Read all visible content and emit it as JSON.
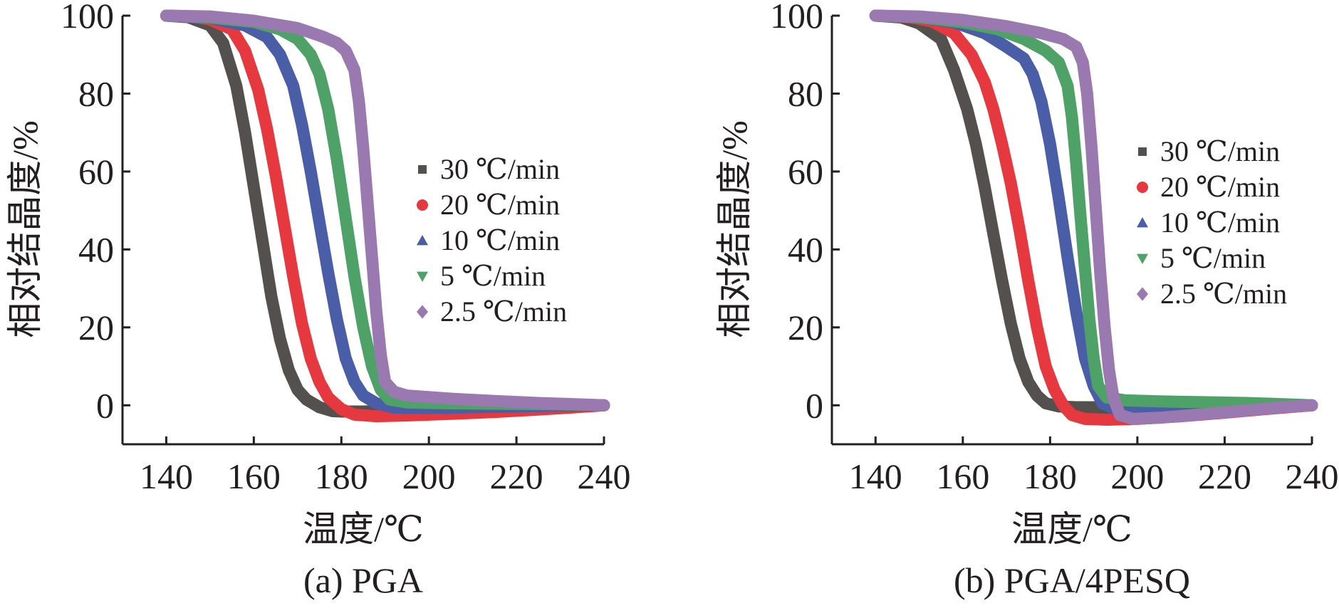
{
  "chart_data": [
    {
      "type": "line",
      "caption": "(a) PGA",
      "xlabel": "温度/℃",
      "ylabel": "相对结晶度/%",
      "xlim": [
        130,
        240
      ],
      "ylim": [
        -10,
        100
      ],
      "xticks": [
        140,
        160,
        180,
        200,
        220,
        240
      ],
      "yticks": [
        0,
        20,
        40,
        60,
        80,
        100
      ],
      "legend_position": "right-center",
      "series": [
        {
          "name": "30 ℃/min",
          "color": "#54504d",
          "marker": "square",
          "points": [
            [
              140,
              100
            ],
            [
              145,
              99.6
            ],
            [
              150,
              97.5
            ],
            [
              153,
              93
            ],
            [
              156,
              82
            ],
            [
              158,
              70
            ],
            [
              160,
              56
            ],
            [
              162,
              42
            ],
            [
              164,
              28
            ],
            [
              166,
              17
            ],
            [
              168,
              9
            ],
            [
              170,
              4
            ],
            [
              172,
              1.5
            ],
            [
              175,
              -0.5
            ],
            [
              178,
              -1.5
            ],
            [
              180,
              -1.6
            ],
            [
              185,
              -1.6
            ],
            [
              190,
              -1.5
            ],
            [
              200,
              -1.3
            ],
            [
              210,
              -1.1
            ],
            [
              220,
              -0.7
            ],
            [
              230,
              -0.3
            ],
            [
              240,
              0
            ]
          ]
        },
        {
          "name": "20 ℃/min",
          "color": "#e5393f",
          "marker": "circle",
          "points": [
            [
              140,
              100
            ],
            [
              146,
              99.8
            ],
            [
              150,
              99
            ],
            [
              155,
              96.5
            ],
            [
              158,
              91
            ],
            [
              161,
              81
            ],
            [
              163,
              71
            ],
            [
              165,
              59
            ],
            [
              167,
              46
            ],
            [
              169,
              33
            ],
            [
              171,
              21
            ],
            [
              173,
              12
            ],
            [
              175,
              6
            ],
            [
              177,
              2
            ],
            [
              180,
              -1
            ],
            [
              183,
              -2.4
            ],
            [
              188,
              -2.8
            ],
            [
              195,
              -2.6
            ],
            [
              205,
              -2.2
            ],
            [
              215,
              -1.7
            ],
            [
              225,
              -1.1
            ],
            [
              232,
              -0.6
            ],
            [
              240,
              0
            ]
          ]
        },
        {
          "name": "10 ℃/min",
          "color": "#4a5ea8",
          "marker": "triangle-up",
          "points": [
            [
              140,
              100
            ],
            [
              150,
              99.4
            ],
            [
              158,
              97.5
            ],
            [
              163,
              94.5
            ],
            [
              166,
              90
            ],
            [
              169,
              82
            ],
            [
              171,
              72
            ],
            [
              173,
              60
            ],
            [
              175,
              47
            ],
            [
              177,
              34
            ],
            [
              179,
              22
            ],
            [
              181,
              12
            ],
            [
              183,
              6
            ],
            [
              185,
              2.5
            ],
            [
              188,
              0.5
            ],
            [
              192,
              -0.6
            ],
            [
              200,
              -0.7
            ],
            [
              210,
              -0.5
            ],
            [
              220,
              -0.3
            ],
            [
              230,
              -0.1
            ],
            [
              240,
              0
            ]
          ]
        },
        {
          "name": "5 ℃/min",
          "color": "#4ea267",
          "marker": "triangle-down",
          "points": [
            [
              140,
              100
            ],
            [
              150,
              99.5
            ],
            [
              160,
              98.4
            ],
            [
              166,
              96.5
            ],
            [
              170,
              94
            ],
            [
              173,
              90
            ],
            [
              175,
              85
            ],
            [
              177,
              76
            ],
            [
              179,
              63
            ],
            [
              181,
              48
            ],
            [
              183,
              33
            ],
            [
              185,
              20
            ],
            [
              187,
              10
            ],
            [
              189,
              4
            ],
            [
              191,
              1.5
            ],
            [
              195,
              0.7
            ],
            [
              205,
              0.5
            ],
            [
              215,
              0.4
            ],
            [
              225,
              0.3
            ],
            [
              233,
              0.2
            ],
            [
              240,
              0
            ]
          ]
        },
        {
          "name": "2.5 ℃/min",
          "color": "#9a78b0",
          "marker": "diamond",
          "points": [
            [
              140,
              100
            ],
            [
              150,
              99.8
            ],
            [
              160,
              98.7
            ],
            [
              170,
              96.8
            ],
            [
              176,
              94.5
            ],
            [
              179,
              93
            ],
            [
              181,
              91
            ],
            [
              183,
              86
            ],
            [
              184,
              78
            ],
            [
              185,
              66
            ],
            [
              186,
              52
            ],
            [
              187,
              38
            ],
            [
              188,
              24
            ],
            [
              189,
              13
            ],
            [
              190,
              6
            ],
            [
              192,
              3.5
            ],
            [
              195,
              2.5
            ],
            [
              205,
              1.7
            ],
            [
              215,
              1.1
            ],
            [
              225,
              0.6
            ],
            [
              233,
              0.3
            ],
            [
              240,
              0
            ]
          ]
        }
      ]
    },
    {
      "type": "line",
      "caption": "(b) PGA/4PESQ",
      "xlabel": "温度/℃",
      "ylabel": "相对结晶度/%",
      "xlim": [
        130,
        240
      ],
      "ylim": [
        -10,
        100
      ],
      "xticks": [
        140,
        160,
        180,
        200,
        220,
        240
      ],
      "yticks": [
        0,
        20,
        40,
        60,
        80,
        100
      ],
      "legend_position": "right-center",
      "series": [
        {
          "name": "30 ℃/min",
          "color": "#54504d",
          "marker": "square",
          "points": [
            [
              140,
              100
            ],
            [
              146,
              99.5
            ],
            [
              150,
              98
            ],
            [
              155,
              94
            ],
            [
              158,
              86
            ],
            [
              161,
              76
            ],
            [
              163,
              67
            ],
            [
              165,
              56
            ],
            [
              167,
              44
            ],
            [
              169,
              32
            ],
            [
              171,
              21
            ],
            [
              173,
              12
            ],
            [
              175,
              6
            ],
            [
              177,
              2.5
            ],
            [
              179,
              0.5
            ],
            [
              182,
              -0.3
            ],
            [
              186,
              -0.5
            ],
            [
              190,
              -0.5
            ],
            [
              195,
              -1.1
            ],
            [
              205,
              -2.6
            ],
            [
              215,
              -2
            ],
            [
              225,
              -1.2
            ],
            [
              232,
              -0.5
            ],
            [
              240,
              0
            ]
          ]
        },
        {
          "name": "20 ℃/min",
          "color": "#e5393f",
          "marker": "circle",
          "points": [
            [
              140,
              100
            ],
            [
              148,
              99.6
            ],
            [
              153,
              98.5
            ],
            [
              158,
              95.5
            ],
            [
              162,
              90
            ],
            [
              165,
              83
            ],
            [
              167,
              76
            ],
            [
              169,
              67
            ],
            [
              171,
              57
            ],
            [
              173,
              45
            ],
            [
              175,
              32
            ],
            [
              177,
              20
            ],
            [
              179,
              10
            ],
            [
              181,
              4
            ],
            [
              183,
              0
            ],
            [
              185,
              -2.5
            ],
            [
              188,
              -3.5
            ],
            [
              193,
              -3.7
            ],
            [
              200,
              -3.5
            ],
            [
              210,
              -2.8
            ],
            [
              220,
              -1.9
            ],
            [
              230,
              -0.9
            ],
            [
              240,
              0
            ]
          ]
        },
        {
          "name": "10 ℃/min",
          "color": "#4a5ea8",
          "marker": "triangle-up",
          "points": [
            [
              140,
              100
            ],
            [
              150,
              99.6
            ],
            [
              158,
              98.3
            ],
            [
              165,
              95.5
            ],
            [
              170,
              92
            ],
            [
              174,
              89
            ],
            [
              176,
              85
            ],
            [
              178,
              78
            ],
            [
              180,
              67
            ],
            [
              182,
              53
            ],
            [
              184,
              38
            ],
            [
              186,
              24
            ],
            [
              188,
              12
            ],
            [
              190,
              5
            ],
            [
              192,
              0.5
            ],
            [
              195,
              -1
            ],
            [
              200,
              -1.2
            ],
            [
              210,
              -0.9
            ],
            [
              220,
              -0.5
            ],
            [
              230,
              -0.2
            ],
            [
              240,
              0
            ]
          ]
        },
        {
          "name": "5 ℃/min",
          "color": "#4ea267",
          "marker": "triangle-down",
          "points": [
            [
              140,
              100
            ],
            [
              150,
              99.6
            ],
            [
              160,
              98.3
            ],
            [
              168,
              96.5
            ],
            [
              174,
              94
            ],
            [
              179,
              91
            ],
            [
              182,
              88
            ],
            [
              184,
              82
            ],
            [
              185,
              74
            ],
            [
              186,
              62
            ],
            [
              187,
              48
            ],
            [
              188,
              35
            ],
            [
              189,
              22
            ],
            [
              190,
              12
            ],
            [
              191,
              5
            ],
            [
              193,
              2
            ],
            [
              197,
              1.3
            ],
            [
              205,
              1
            ],
            [
              215,
              0.8
            ],
            [
              225,
              0.6
            ],
            [
              233,
              0.3
            ],
            [
              240,
              0
            ]
          ]
        },
        {
          "name": "2.5 ℃/min",
          "color": "#9a78b0",
          "marker": "diamond",
          "points": [
            [
              140,
              100
            ],
            [
              150,
              99.8
            ],
            [
              160,
              98.9
            ],
            [
              170,
              97.3
            ],
            [
              178,
              95.5
            ],
            [
              183,
              94
            ],
            [
              186,
              92
            ],
            [
              187.5,
              88
            ],
            [
              188.5,
              80
            ],
            [
              189.5,
              66
            ],
            [
              190.5,
              50
            ],
            [
              191.5,
              34
            ],
            [
              192.5,
              20
            ],
            [
              193.5,
              9
            ],
            [
              194.5,
              2
            ],
            [
              196,
              -2.5
            ],
            [
              199,
              -3.5
            ],
            [
              205,
              -3.2
            ],
            [
              215,
              -2.3
            ],
            [
              225,
              -1.3
            ],
            [
              233,
              -0.5
            ],
            [
              240,
              0
            ]
          ]
        }
      ]
    }
  ]
}
